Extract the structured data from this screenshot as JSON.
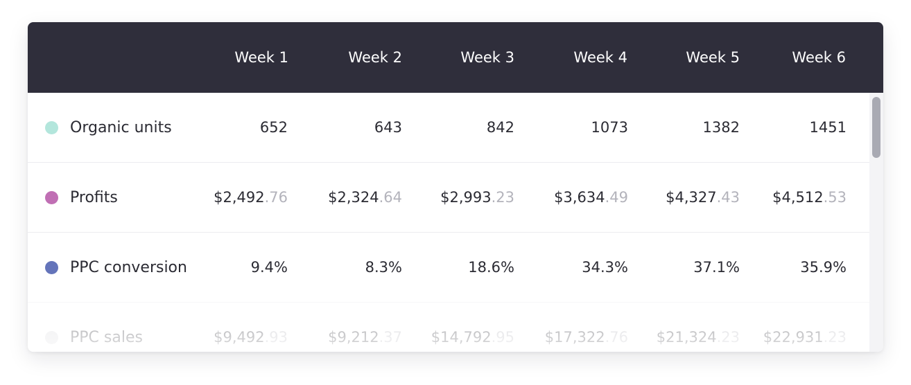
{
  "header": {
    "weeks": [
      "Week 1",
      "Week 2",
      "Week 3",
      "Week 4",
      "Week 5",
      "Week 6"
    ]
  },
  "rows": [
    {
      "label": "Organic units",
      "color": "#b3e6dc",
      "values": [
        {
          "main": "652",
          "cents": ""
        },
        {
          "main": "643",
          "cents": ""
        },
        {
          "main": "842",
          "cents": ""
        },
        {
          "main": "1073",
          "cents": ""
        },
        {
          "main": "1382",
          "cents": ""
        },
        {
          "main": "1451",
          "cents": ""
        }
      ]
    },
    {
      "label": "Profits",
      "color": "#c06fb4",
      "values": [
        {
          "main": "$2,492",
          "cents": ".76"
        },
        {
          "main": "$2,324",
          "cents": ".64"
        },
        {
          "main": "$2,993",
          "cents": ".23"
        },
        {
          "main": "$3,634",
          "cents": ".49"
        },
        {
          "main": "$4,327",
          "cents": ".43"
        },
        {
          "main": "$4,512",
          "cents": ".53"
        }
      ]
    },
    {
      "label": "PPC conversion",
      "color": "#6474ba",
      "values": [
        {
          "main": "9.4%",
          "cents": ""
        },
        {
          "main": "8.3%",
          "cents": ""
        },
        {
          "main": "18.6%",
          "cents": ""
        },
        {
          "main": "34.3%",
          "cents": ""
        },
        {
          "main": "37.1%",
          "cents": ""
        },
        {
          "main": "35.9%",
          "cents": ""
        }
      ]
    },
    {
      "label": "PPC sales",
      "color": "#d9d9dd",
      "values": [
        {
          "main": "$9,492",
          "cents": ".93"
        },
        {
          "main": "$9,212",
          "cents": ".37"
        },
        {
          "main": "$14,792",
          "cents": ".95"
        },
        {
          "main": "$17,322",
          "cents": ".76"
        },
        {
          "main": "$21,324",
          "cents": ".23"
        },
        {
          "main": "$22,931",
          "cents": ".23"
        }
      ]
    }
  ]
}
